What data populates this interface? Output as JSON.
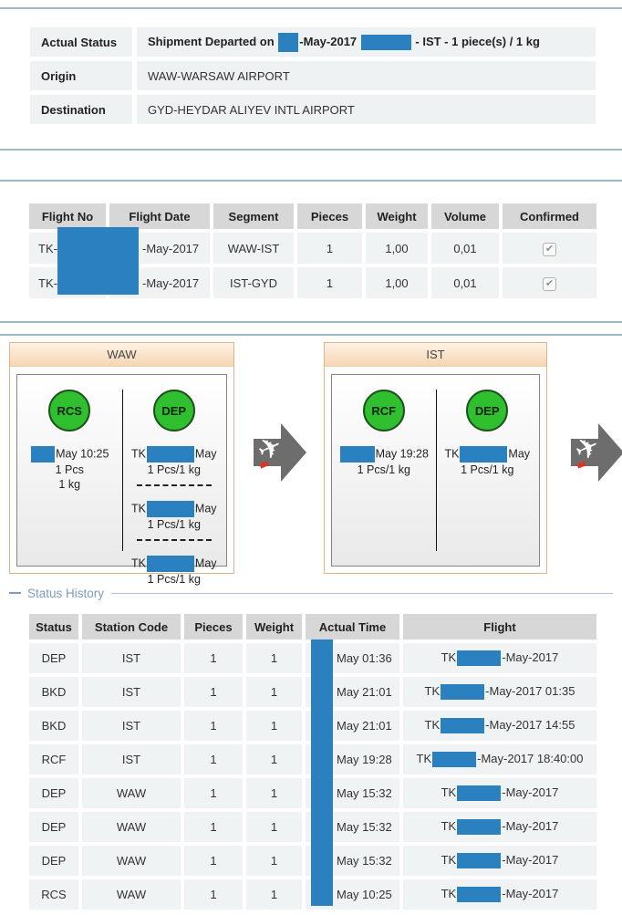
{
  "colors": {
    "section_line": "#9db9c7",
    "redaction_blue": "#2b80c0",
    "status_green": "#2fbf2f",
    "panel_border": "#ddb58a",
    "panel_header_bg": "#f7d6b3",
    "legend_blue": "#7d9cc0",
    "header_cell_bg": "#d7d7d7",
    "body_cell_bg": "#eff3f3"
  },
  "summary": {
    "rows": [
      {
        "label": "Actual Status",
        "bold": true,
        "parts": [
          {
            "t": "Shipment Departed on "
          },
          {
            "r": 22,
            "h": 21
          },
          {
            "t": "-May-2017 "
          },
          {
            "r": 55
          },
          {
            "t": " - IST - 1 piece(s) / 1 kg"
          }
        ]
      },
      {
        "label": "Origin",
        "bold": false,
        "parts": [
          {
            "t": "WAW-WARSAW AIRPORT"
          }
        ]
      },
      {
        "label": "Destination",
        "bold": false,
        "parts": [
          {
            "t": "GYD-HEYDAR ALIYEV INTL AIRPORT"
          }
        ]
      }
    ]
  },
  "flight_table": {
    "headers": [
      "Flight No",
      "Flight Date",
      "Segment",
      "Pieces",
      "Weight",
      "Volume",
      "Confirmed"
    ],
    "rows": [
      {
        "flight_no": "TK-",
        "flight_date": "-May-2017",
        "segment": "WAW-IST",
        "pieces": "1",
        "weight": "1,00",
        "volume": "0,01",
        "confirmed": true
      },
      {
        "flight_no": "TK-",
        "flight_date": "-May-2017",
        "segment": "IST-GYD",
        "pieces": "1",
        "weight": "1,00",
        "volume": "0,01",
        "confirmed": true
      }
    ]
  },
  "stations": {
    "panels": [
      {
        "title": "WAW",
        "columns": [
          {
            "status": "RCS",
            "entries": [
              {
                "parts": [
                  {
                    "r": 26
                  },
                  {
                    "t": "May 10:25"
                  }
                ],
                "lines": [
                  "1 Pcs",
                  "1 kg"
                ]
              }
            ]
          },
          {
            "status": "DEP",
            "entries": [
              {
                "parts": [
                  {
                    "t": "TK"
                  },
                  {
                    "r": 52
                  },
                  {
                    "t": "May"
                  }
                ],
                "lines": [
                  "1 Pcs/1 kg"
                ]
              },
              {
                "parts": [
                  {
                    "t": "TK"
                  },
                  {
                    "r": 52
                  },
                  {
                    "t": "May"
                  }
                ],
                "lines": [
                  "1 Pcs/1 kg"
                ]
              },
              {
                "parts": [
                  {
                    "t": "TK"
                  },
                  {
                    "r": 52
                  },
                  {
                    "t": "May"
                  }
                ],
                "lines": [
                  "1 Pcs/1 kg"
                ]
              }
            ]
          }
        ]
      },
      {
        "title": "IST",
        "columns": [
          {
            "status": "RCF",
            "entries": [
              {
                "parts": [
                  {
                    "r": 38
                  },
                  {
                    "t": "May 19:28"
                  }
                ],
                "lines": [
                  "1 Pcs/1 kg"
                ]
              }
            ]
          },
          {
            "status": "DEP",
            "entries": [
              {
                "parts": [
                  {
                    "t": "TK"
                  },
                  {
                    "r": 52
                  },
                  {
                    "t": "May"
                  }
                ],
                "lines": [
                  "1 Pcs/1 kg"
                ]
              }
            ]
          }
        ]
      }
    ]
  },
  "status_history": {
    "legend": "Status History",
    "headers": [
      "Status",
      "Station Code",
      "Pieces",
      "Weight",
      "Actual Time",
      "Flight"
    ],
    "rows": [
      {
        "status": "DEP",
        "station": "IST",
        "pieces": "1",
        "weight": "1",
        "time": "May 01:36",
        "flight": [
          {
            "t": "TK"
          },
          {
            "r": 48
          },
          {
            "t": "-May-2017"
          }
        ]
      },
      {
        "status": "BKD",
        "station": "IST",
        "pieces": "1",
        "weight": "1",
        "time": "May 21:01",
        "flight": [
          {
            "t": "TK"
          },
          {
            "r": 48
          },
          {
            "t": "-May-2017 01:35"
          }
        ]
      },
      {
        "status": "BKD",
        "station": "IST",
        "pieces": "1",
        "weight": "1",
        "time": "May 21:01",
        "flight": [
          {
            "t": "TK"
          },
          {
            "r": 48
          },
          {
            "t": "-May-2017 14:55"
          }
        ]
      },
      {
        "status": "RCF",
        "station": "IST",
        "pieces": "1",
        "weight": "1",
        "time": "May 19:28",
        "flight": [
          {
            "t": "TK"
          },
          {
            "r": 48
          },
          {
            "t": "-May-2017 18:40:00"
          }
        ]
      },
      {
        "status": "DEP",
        "station": "WAW",
        "pieces": "1",
        "weight": "1",
        "time": "May 15:32",
        "flight": [
          {
            "t": "TK"
          },
          {
            "r": 48
          },
          {
            "t": "-May-2017"
          }
        ]
      },
      {
        "status": "DEP",
        "station": "WAW",
        "pieces": "1",
        "weight": "1",
        "time": "May 15:32",
        "flight": [
          {
            "t": "TK"
          },
          {
            "r": 48
          },
          {
            "t": "-May-2017"
          }
        ]
      },
      {
        "status": "DEP",
        "station": "WAW",
        "pieces": "1",
        "weight": "1",
        "time": "May 15:32",
        "flight": [
          {
            "t": "TK"
          },
          {
            "r": 48
          },
          {
            "t": "-May-2017"
          }
        ]
      },
      {
        "status": "RCS",
        "station": "WAW",
        "pieces": "1",
        "weight": "1",
        "time": "May 10:25",
        "flight": [
          {
            "t": "TK"
          },
          {
            "r": 48
          },
          {
            "t": "-May-2017"
          }
        ]
      }
    ]
  }
}
